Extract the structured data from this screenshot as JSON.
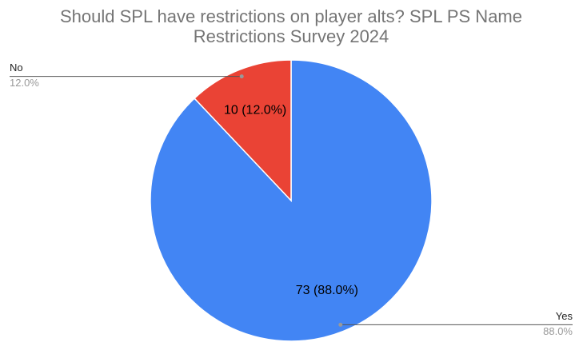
{
  "chart_data": {
    "type": "pie",
    "title": "Should SPL have restrictions on player alts?  SPL PS Name",
    "subtitle": "Restrictions Survey 2024",
    "categories": [
      "Yes",
      "No"
    ],
    "values": [
      73,
      10
    ],
    "value_labels": [
      "73 (88.0%)",
      "10 (12.0%)"
    ],
    "percentages": [
      {
        "value": 88.0,
        "label": "88.0%"
      },
      {
        "value": 12.0,
        "label": "12.0%"
      }
    ],
    "colors": [
      "#4285f4",
      "#ea4335"
    ]
  }
}
